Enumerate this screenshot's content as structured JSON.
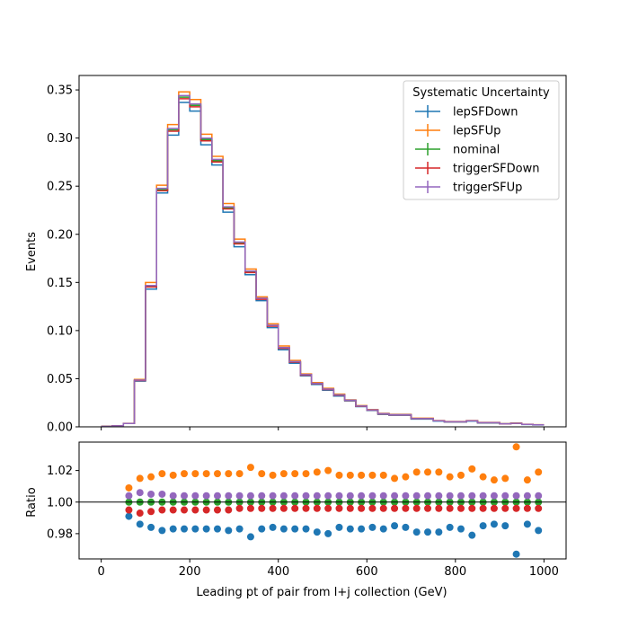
{
  "chart_data": [
    {
      "type": "line",
      "drawstyle": "steps",
      "ylabel": "Events",
      "xlim": [
        -50,
        1050
      ],
      "ylim": [
        0,
        0.365
      ],
      "yticks": [
        "0.00",
        "0.05",
        "0.10",
        "0.15",
        "0.20",
        "0.25",
        "0.30",
        "0.35"
      ],
      "legend": {
        "title": "Systematic Uncertainty",
        "placement": "top-right"
      },
      "bin_edges": [
        0,
        25,
        50,
        75,
        100,
        125,
        150,
        175,
        200,
        225,
        250,
        275,
        300,
        325,
        350,
        375,
        400,
        425,
        450,
        475,
        500,
        525,
        550,
        575,
        600,
        625,
        650,
        675,
        700,
        725,
        750,
        775,
        800,
        825,
        850,
        875,
        900,
        925,
        950,
        975,
        1000
      ],
      "series": [
        {
          "name": "lepSFDown",
          "color": "#1f77b4",
          "values": [
            0.0005,
            0.001,
            0.0035,
            0.0475,
            0.143,
            0.243,
            0.303,
            0.337,
            0.328,
            0.293,
            0.272,
            0.223,
            0.187,
            0.158,
            0.131,
            0.103,
            0.08,
            0.066,
            0.053,
            0.044,
            0.038,
            0.032,
            0.027,
            0.021,
            0.017,
            0.013,
            0.012,
            0.012,
            0.008,
            0.008,
            0.006,
            0.005,
            0.005,
            0.006,
            0.004,
            0.004,
            0.003,
            0.0035,
            0.0025,
            0.002
          ]
        },
        {
          "name": "lepSFUp",
          "color": "#ff7f0e",
          "values": [
            0.0005,
            0.001,
            0.0036,
            0.0492,
            0.15,
            0.251,
            0.314,
            0.348,
            0.34,
            0.304,
            0.281,
            0.232,
            0.195,
            0.164,
            0.135,
            0.107,
            0.084,
            0.069,
            0.055,
            0.046,
            0.04,
            0.034,
            0.028,
            0.022,
            0.018,
            0.014,
            0.013,
            0.013,
            0.009,
            0.009,
            0.0065,
            0.0055,
            0.0055,
            0.0065,
            0.0045,
            0.0045,
            0.0032,
            0.0038,
            0.0027,
            0.0022
          ]
        },
        {
          "name": "nominal",
          "color": "#2ca02c",
          "values": [
            0.0005,
            0.001,
            0.0035,
            0.0483,
            0.146,
            0.2465,
            0.3085,
            0.3425,
            0.334,
            0.2985,
            0.2765,
            0.2275,
            0.191,
            0.161,
            0.133,
            0.105,
            0.082,
            0.0675,
            0.054,
            0.045,
            0.039,
            0.033,
            0.0275,
            0.0215,
            0.0175,
            0.0135,
            0.0125,
            0.0125,
            0.0085,
            0.0085,
            0.0063,
            0.0053,
            0.0053,
            0.0063,
            0.0043,
            0.0043,
            0.0031,
            0.0036,
            0.0026,
            0.0021
          ]
        },
        {
          "name": "triggerSFDown",
          "color": "#d62728",
          "values": [
            0.0005,
            0.001,
            0.0035,
            0.0481,
            0.1453,
            0.2453,
            0.3071,
            0.3409,
            0.3325,
            0.2971,
            0.2752,
            0.2264,
            0.1901,
            0.1602,
            0.1324,
            0.1045,
            0.0816,
            0.0672,
            0.0537,
            0.0448,
            0.0388,
            0.0328,
            0.0274,
            0.0214,
            0.0174,
            0.0134,
            0.0124,
            0.0124,
            0.0085,
            0.0085,
            0.0063,
            0.0053,
            0.0053,
            0.0063,
            0.0043,
            0.0043,
            0.0031,
            0.0036,
            0.0026,
            0.0021
          ]
        },
        {
          "name": "triggerSFUp",
          "color": "#9467bd",
          "values": [
            0.0005,
            0.001,
            0.0035,
            0.0485,
            0.1468,
            0.2477,
            0.3099,
            0.3441,
            0.3355,
            0.2999,
            0.2778,
            0.2286,
            0.1919,
            0.1618,
            0.1336,
            0.1055,
            0.0824,
            0.0678,
            0.0543,
            0.0452,
            0.0392,
            0.0332,
            0.0276,
            0.0216,
            0.0176,
            0.0136,
            0.0126,
            0.0126,
            0.0085,
            0.0085,
            0.0063,
            0.0053,
            0.0053,
            0.0063,
            0.0043,
            0.0043,
            0.0031,
            0.0036,
            0.0026,
            0.0021
          ]
        }
      ]
    },
    {
      "type": "scatter",
      "xlabel": "Leading pt of pair from l+j collection (GeV)",
      "ylabel": "Ratio",
      "xlim": [
        -50,
        1050
      ],
      "ylim": [
        0.964,
        1.038
      ],
      "xticks": [
        "0",
        "200",
        "400",
        "600",
        "800",
        "1000"
      ],
      "yticks": [
        "0.98",
        "1.00",
        "1.02"
      ],
      "reference_line": 1.0,
      "x": [
        62.5,
        87.5,
        112.5,
        137.5,
        162.5,
        187.5,
        212.5,
        237.5,
        262.5,
        287.5,
        312.5,
        337.5,
        362.5,
        387.5,
        412.5,
        437.5,
        462.5,
        487.5,
        512.5,
        537.5,
        562.5,
        587.5,
        612.5,
        637.5,
        662.5,
        687.5,
        712.5,
        737.5,
        762.5,
        787.5,
        812.5,
        837.5,
        862.5,
        887.5,
        912.5,
        937.5,
        962.5,
        987.5
      ],
      "series": [
        {
          "name": "lepSFDown",
          "color": "#1f77b4",
          "values": [
            0.991,
            0.986,
            0.984,
            0.982,
            0.983,
            0.983,
            0.983,
            0.983,
            0.983,
            0.982,
            0.983,
            0.978,
            0.983,
            0.984,
            0.983,
            0.983,
            0.983,
            0.981,
            0.98,
            0.984,
            0.983,
            0.983,
            0.984,
            0.983,
            0.985,
            0.984,
            0.981,
            0.981,
            0.981,
            0.984,
            0.983,
            0.979,
            0.985,
            0.986,
            0.985,
            0.967,
            0.986,
            0.982
          ]
        },
        {
          "name": "lepSFUp",
          "color": "#ff7f0e",
          "values": [
            1.009,
            1.015,
            1.016,
            1.018,
            1.017,
            1.018,
            1.018,
            1.018,
            1.018,
            1.018,
            1.018,
            1.022,
            1.018,
            1.017,
            1.018,
            1.018,
            1.018,
            1.019,
            1.02,
            1.017,
            1.017,
            1.017,
            1.017,
            1.017,
            1.015,
            1.016,
            1.019,
            1.019,
            1.019,
            1.016,
            1.017,
            1.021,
            1.016,
            1.014,
            1.015,
            1.035,
            1.014,
            1.019
          ]
        },
        {
          "name": "nominal",
          "color": "#2ca02c",
          "values": [
            1.0,
            1.0,
            1.0,
            1.0,
            1.0,
            1.0,
            1.0,
            1.0,
            1.0,
            1.0,
            1.0,
            1.0,
            1.0,
            1.0,
            1.0,
            1.0,
            1.0,
            1.0,
            1.0,
            1.0,
            1.0,
            1.0,
            1.0,
            1.0,
            1.0,
            1.0,
            1.0,
            1.0,
            1.0,
            1.0,
            1.0,
            1.0,
            1.0,
            1.0,
            1.0,
            1.0,
            1.0,
            1.0
          ]
        },
        {
          "name": "triggerSFDown",
          "color": "#d62728",
          "values": [
            0.995,
            0.993,
            0.994,
            0.995,
            0.995,
            0.995,
            0.995,
            0.995,
            0.995,
            0.995,
            0.996,
            0.996,
            0.996,
            0.996,
            0.996,
            0.996,
            0.996,
            0.996,
            0.996,
            0.996,
            0.996,
            0.996,
            0.996,
            0.996,
            0.996,
            0.996,
            0.996,
            0.996,
            0.996,
            0.996,
            0.996,
            0.996,
            0.996,
            0.996,
            0.996,
            0.996,
            0.996,
            0.996
          ]
        },
        {
          "name": "triggerSFUp",
          "color": "#9467bd",
          "values": [
            1.004,
            1.006,
            1.005,
            1.005,
            1.004,
            1.004,
            1.004,
            1.004,
            1.004,
            1.004,
            1.004,
            1.004,
            1.004,
            1.004,
            1.004,
            1.004,
            1.004,
            1.004,
            1.004,
            1.004,
            1.004,
            1.004,
            1.004,
            1.004,
            1.004,
            1.004,
            1.004,
            1.004,
            1.004,
            1.004,
            1.004,
            1.004,
            1.004,
            1.004,
            1.004,
            1.004,
            1.004,
            1.004
          ]
        }
      ]
    }
  ]
}
